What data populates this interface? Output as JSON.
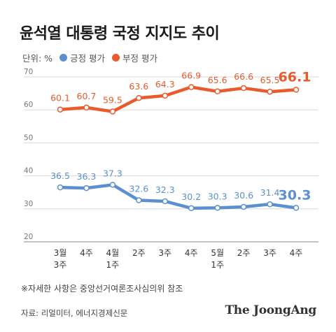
{
  "title": "윤석열 대통령 국정 지지도 추이",
  "unit_label": "단위: %",
  "note": "※자세한 사항은 중앙선거여론조사심의위 참조",
  "source": "자료: 리얼미터, 에너지경제신문",
  "brand": "The JoongAng",
  "chart_data": {
    "type": "line",
    "categories": [
      [
        "3월",
        "3주"
      ],
      [
        "4주"
      ],
      [
        "4월",
        "1주"
      ],
      [
        "2주"
      ],
      [
        "3주"
      ],
      [
        "4주"
      ],
      [
        "5월",
        "1주"
      ],
      [
        "2주"
      ],
      [
        "3주"
      ],
      [
        "4주"
      ]
    ],
    "series": [
      {
        "name": "긍정 평가",
        "color": "#5b8fd1",
        "values": [
          36.5,
          36.3,
          37.3,
          32.6,
          32.3,
          30.2,
          30.3,
          30.6,
          31.4,
          30.3
        ]
      },
      {
        "name": "부정 평가",
        "color": "#ea5a2b",
        "values": [
          60.1,
          60.7,
          59.5,
          63.6,
          64.3,
          66.9,
          65.6,
          66.6,
          65.5,
          66.1
        ]
      }
    ],
    "yticks": [
      20,
      30,
      40,
      50,
      60,
      70
    ],
    "ylim": [
      20,
      70
    ],
    "grid": true,
    "legend": "top-left"
  }
}
